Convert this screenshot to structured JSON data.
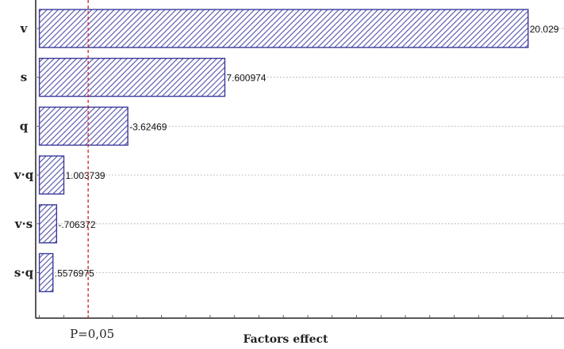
{
  "chart_data": {
    "type": "bar",
    "orientation": "horizontal",
    "title": "",
    "xlabel": "Factors effect",
    "ylabel": "",
    "categories": [
      "v",
      "s",
      "q",
      "v·q",
      "v·s",
      "s·q"
    ],
    "values": [
      20.029,
      7.600974,
      3.62469,
      1.003739,
      0.706372,
      0.5576975
    ],
    "value_labels": [
      "20.029",
      "7.600974",
      "-3.62469",
      "1.003739",
      "-.706372",
      ".5576975"
    ],
    "xlim": [
      -0.15,
      21.5
    ],
    "grid": true,
    "reference_line": {
      "value": 2.0,
      "label": "P=0,05",
      "color": "#d0202a",
      "style": "dashed"
    },
    "bar_fill": "#c8c8e6",
    "bar_stroke": "#3a3a9a",
    "hatch_color": "#5050a8"
  }
}
